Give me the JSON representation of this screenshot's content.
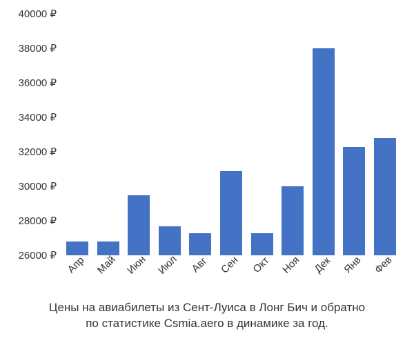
{
  "chart": {
    "type": "bar",
    "background_color": "#ffffff",
    "bar_color": "#4472c4",
    "text_color": "#333333",
    "label_fontsize": 15,
    "caption_fontsize": 17,
    "currency_symbol": "₽",
    "y_axis": {
      "min": 26000,
      "max": 40000,
      "ticks": [
        26000,
        28000,
        30000,
        32000,
        34000,
        36000,
        38000,
        40000
      ]
    },
    "x_tick_rotation": -45,
    "bar_width_ratio": 0.72,
    "categories": [
      "Апр",
      "Май",
      "Июн",
      "Июл",
      "Авг",
      "Сен",
      "Окт",
      "Ноя",
      "Дек",
      "Янв",
      "Фев"
    ],
    "values": [
      26800,
      26800,
      29500,
      27700,
      27300,
      30900,
      27300,
      30000,
      38000,
      32300,
      32800
    ],
    "caption_line1": "Цены на авиабилеты из Сент-Луиса в Лонг Бич и обратно",
    "caption_line2": "по статистике Csmia.aero в динамике за год."
  }
}
